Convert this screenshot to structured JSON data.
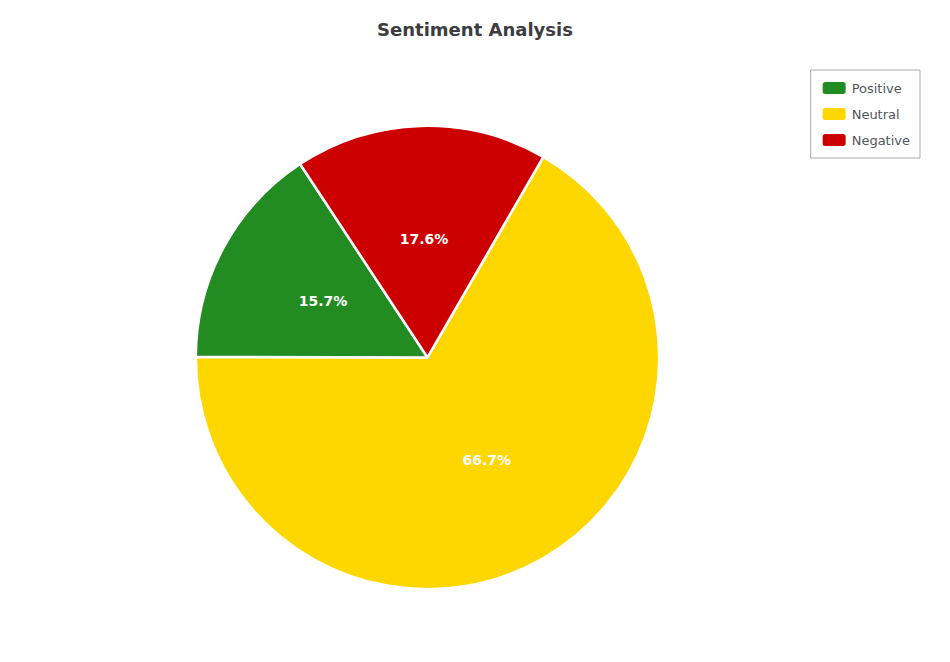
{
  "chart_data": {
    "type": "pie",
    "title": "Sentiment Analysis",
    "categories": [
      "Neutral",
      "Positive",
      "Negative"
    ],
    "values": [
      66.7,
      15.7,
      17.6
    ],
    "value_labels": [
      "66.7%",
      "15.7%",
      "17.6%"
    ],
    "colors": [
      "#FFD700",
      "#228B22",
      "#CC0000"
    ],
    "data_labels": true,
    "legend": "upper right",
    "legend_labels": [
      "Positive",
      "Neutral",
      "Negative"
    ]
  }
}
